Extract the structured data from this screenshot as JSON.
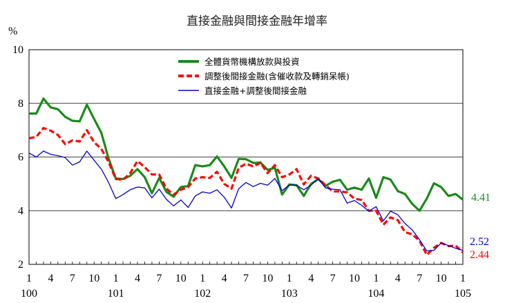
{
  "chart_data": {
    "type": "line",
    "title": "直接金融與間接金融年增率",
    "y_unit": "%",
    "ylim": [
      2,
      10
    ],
    "yticks": [
      "2",
      "4",
      "6",
      "8",
      "10"
    ],
    "x_month_labels": [
      "1",
      "4",
      "7",
      "10",
      "1",
      "4",
      "7",
      "10",
      "1",
      "4",
      "7",
      "10",
      "1",
      "4",
      "7",
      "10",
      "1",
      "4",
      "7",
      "10",
      "1"
    ],
    "x_year_labels": [
      "100",
      "101",
      "102",
      "103",
      "104",
      "105"
    ],
    "grid": true,
    "legend_position": "top-center",
    "colors": {
      "series1": "#1a8a1a",
      "series2": "#ff0000",
      "series3": "#0000cc"
    },
    "x": [
      1,
      2,
      3,
      4,
      5,
      6,
      7,
      8,
      9,
      10,
      11,
      12,
      13,
      14,
      15,
      16,
      17,
      18,
      19,
      20,
      21,
      22,
      23,
      24,
      25,
      26,
      27,
      28,
      29,
      30,
      31,
      32,
      33,
      34,
      35,
      36,
      37,
      38,
      39,
      40,
      41,
      42,
      43,
      44,
      45,
      46,
      47,
      48,
      49,
      50,
      51,
      52,
      53,
      54,
      55,
      56,
      57,
      58,
      59,
      60,
      61
    ],
    "series": [
      {
        "name": "全體貨幣機構放款與投資",
        "end_label": "4.41",
        "values": [
          7.62,
          7.62,
          8.18,
          7.85,
          7.78,
          7.5,
          7.35,
          7.33,
          7.95,
          7.42,
          6.9,
          5.95,
          5.2,
          5.18,
          5.3,
          5.55,
          5.25,
          4.65,
          5.22,
          4.7,
          4.52,
          4.88,
          4.92,
          5.7,
          5.65,
          5.7,
          6.02,
          5.65,
          5.22,
          5.93,
          5.92,
          5.78,
          5.8,
          5.52,
          5.6,
          4.6,
          4.98,
          4.95,
          4.55,
          5.0,
          5.18,
          4.92,
          5.08,
          5.15,
          4.78,
          4.86,
          4.78,
          5.2,
          4.48,
          5.25,
          5.16,
          4.73,
          4.62,
          4.25,
          4.0,
          4.45,
          5.02,
          4.88,
          4.55,
          4.62,
          4.41
        ]
      },
      {
        "name": "調整後間接金融(含催收款及轉銷呆帳)",
        "end_label": "2.44",
        "values": [
          6.7,
          6.75,
          7.08,
          6.98,
          6.82,
          6.48,
          6.62,
          6.58,
          7.0,
          6.55,
          6.3,
          5.82,
          5.18,
          5.15,
          5.4,
          5.85,
          5.62,
          5.35,
          5.35,
          4.82,
          4.6,
          4.78,
          4.88,
          5.2,
          5.25,
          5.22,
          5.45,
          5.0,
          4.82,
          5.6,
          5.75,
          5.65,
          5.78,
          5.4,
          5.7,
          5.25,
          5.35,
          5.55,
          4.98,
          5.3,
          5.2,
          4.95,
          4.72,
          4.72,
          4.68,
          4.45,
          4.4,
          4.0,
          4.0,
          3.48,
          3.75,
          3.65,
          3.2,
          3.12,
          2.88,
          2.35,
          2.62,
          2.8,
          2.68,
          2.7,
          2.44
        ]
      },
      {
        "name": "直接金融+調整後間接金融",
        "end_label": "2.52",
        "values": [
          6.15,
          6.0,
          6.22,
          6.1,
          6.05,
          5.98,
          5.7,
          5.82,
          6.22,
          5.88,
          5.55,
          5.05,
          4.45,
          4.6,
          4.78,
          4.88,
          4.85,
          4.48,
          4.8,
          4.42,
          4.18,
          4.4,
          4.12,
          4.55,
          4.7,
          4.65,
          4.78,
          4.5,
          4.1,
          4.82,
          5.05,
          4.9,
          5.02,
          4.95,
          5.2,
          4.75,
          4.95,
          4.95,
          4.78,
          4.95,
          5.2,
          4.85,
          4.8,
          4.78,
          4.28,
          4.38,
          4.2,
          3.98,
          4.15,
          3.62,
          3.98,
          3.85,
          3.52,
          3.28,
          2.92,
          2.5,
          2.52,
          2.8,
          2.7,
          2.6,
          2.52
        ]
      }
    ]
  }
}
